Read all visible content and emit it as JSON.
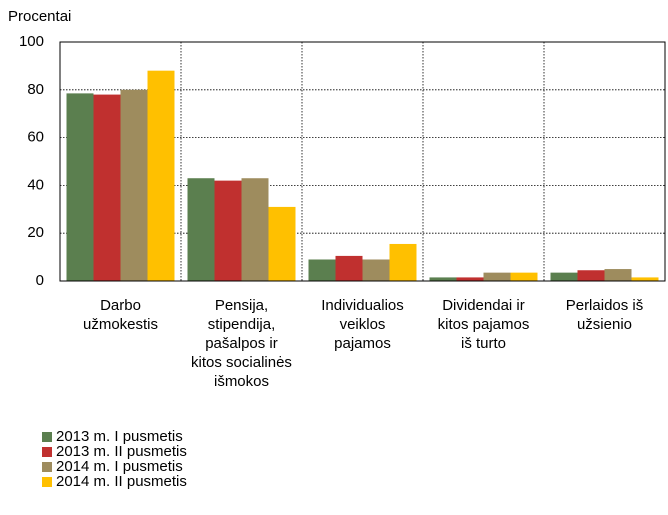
{
  "chart_data": {
    "type": "bar",
    "y_label": "Procentai",
    "categories": [
      "Darbo\nužmokestis",
      "Pensija,\nstipendija,\npašalpos ir\nkitos socialinės\nišmokos",
      "Individualios\nveiklos\npajamos",
      "Dividendai ir\nkitos pajamos\niš turto",
      "Perlaidos iš\nužsienio"
    ],
    "series": [
      {
        "name": "2013 m. I pusmetis",
        "color": "#5b7f4f",
        "values": [
          78.5,
          43,
          9,
          1.5,
          3.5
        ]
      },
      {
        "name": "2013 m. II pusmetis",
        "color": "#c0302f",
        "values": [
          78,
          42,
          10.5,
          1.5,
          4.5
        ]
      },
      {
        "name": "2014 m. I pusmetis",
        "color": "#9e8c5e",
        "values": [
          80,
          43,
          9,
          3.5,
          5
        ]
      },
      {
        "name": "2014 m. II pusmetis",
        "color": "#ffc000",
        "values": [
          88,
          31,
          15.5,
          3.5,
          1.5
        ]
      }
    ],
    "ylim": [
      0,
      100
    ],
    "yticks": [
      0,
      20,
      40,
      60,
      80,
      100
    ],
    "grid": true
  }
}
